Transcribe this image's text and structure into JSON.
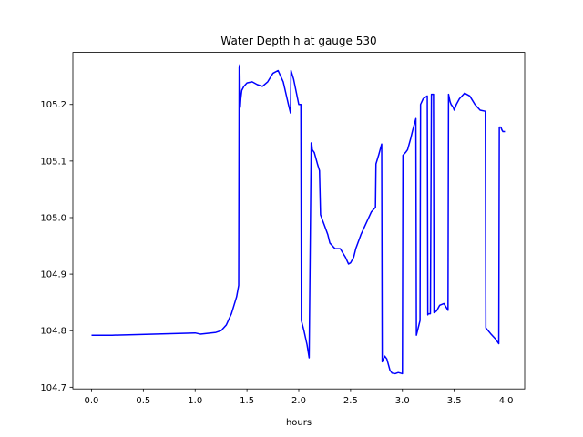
{
  "chart_data": {
    "type": "line",
    "title": "Water Depth h at gauge 530",
    "xlabel": "hours",
    "ylabel": "",
    "xlim": [
      -0.18,
      4.18
    ],
    "ylim": [
      104.697,
      105.292
    ],
    "xticks": [
      0.0,
      0.5,
      1.0,
      1.5,
      2.0,
      2.5,
      3.0,
      3.5,
      4.0
    ],
    "xtick_labels": [
      "0.0",
      "0.5",
      "1.0",
      "1.5",
      "2.0",
      "2.5",
      "3.0",
      "3.5",
      "4.0"
    ],
    "yticks": [
      104.7,
      104.8,
      104.9,
      105.0,
      105.1,
      105.2
    ],
    "ytick_labels": [
      "104.7",
      "104.8",
      "104.9",
      "105.0",
      "105.1",
      "105.2"
    ],
    "grid": false,
    "series": [
      {
        "color": "#0000ff",
        "x": [
          0.0,
          0.2,
          0.4,
          0.6,
          0.8,
          1.0,
          1.05,
          1.1,
          1.2,
          1.25,
          1.3,
          1.35,
          1.4,
          1.42,
          1.425,
          1.43,
          1.435,
          1.44,
          1.45,
          1.47,
          1.5,
          1.55,
          1.6,
          1.65,
          1.7,
          1.75,
          1.8,
          1.85,
          1.9,
          1.92,
          1.925,
          1.95,
          2.0,
          2.02,
          2.025,
          2.05,
          2.08,
          2.1,
          2.12,
          2.125,
          2.13,
          2.15,
          2.18,
          2.2,
          2.21,
          2.23,
          2.25,
          2.28,
          2.3,
          2.35,
          2.4,
          2.45,
          2.48,
          2.5,
          2.53,
          2.55,
          2.58,
          2.6,
          2.65,
          2.7,
          2.74,
          2.745,
          2.77,
          2.8,
          2.805,
          2.83,
          2.85,
          2.88,
          2.9,
          2.93,
          2.96,
          3.0,
          3.005,
          3.03,
          3.05,
          3.08,
          3.1,
          3.13,
          3.135,
          3.17,
          3.175,
          3.2,
          3.24,
          3.245,
          3.25,
          3.27,
          3.28,
          3.285,
          3.3,
          3.305,
          3.31,
          3.33,
          3.36,
          3.4,
          3.44,
          3.445,
          3.46,
          3.47,
          3.49,
          3.5,
          3.52,
          3.55,
          3.6,
          3.65,
          3.7,
          3.75,
          3.8,
          3.805,
          3.85,
          3.9,
          3.93,
          3.935,
          3.95,
          3.96,
          3.97,
          3.99
        ],
        "y": [
          104.792,
          104.792,
          104.793,
          104.794,
          104.795,
          104.796,
          104.794,
          104.795,
          104.797,
          104.8,
          104.81,
          104.83,
          104.86,
          104.88,
          105.265,
          105.27,
          105.195,
          105.21,
          105.225,
          105.232,
          105.238,
          105.24,
          105.235,
          105.232,
          105.24,
          105.255,
          105.26,
          105.24,
          105.2,
          105.185,
          105.26,
          105.245,
          105.2,
          105.2,
          104.818,
          104.8,
          104.775,
          104.752,
          105.132,
          105.13,
          105.12,
          105.115,
          105.095,
          105.083,
          105.005,
          104.995,
          104.985,
          104.97,
          104.955,
          104.945,
          104.945,
          104.93,
          104.918,
          104.92,
          104.93,
          104.945,
          104.96,
          104.97,
          104.99,
          105.01,
          105.018,
          105.095,
          105.11,
          105.13,
          104.745,
          104.755,
          104.75,
          104.73,
          104.725,
          104.724,
          104.726,
          104.724,
          105.11,
          105.115,
          105.12,
          105.14,
          105.155,
          105.175,
          104.792,
          104.818,
          105.2,
          105.21,
          105.215,
          104.828,
          104.83,
          104.83,
          105.218,
          105.218,
          105.218,
          104.832,
          104.832,
          104.835,
          104.845,
          104.848,
          104.836,
          105.218,
          105.205,
          105.2,
          105.195,
          105.19,
          105.2,
          105.21,
          105.22,
          105.215,
          105.2,
          105.19,
          105.188,
          104.805,
          104.795,
          104.785,
          104.777,
          105.16,
          105.16,
          105.155,
          105.152,
          105.152
        ]
      }
    ]
  }
}
